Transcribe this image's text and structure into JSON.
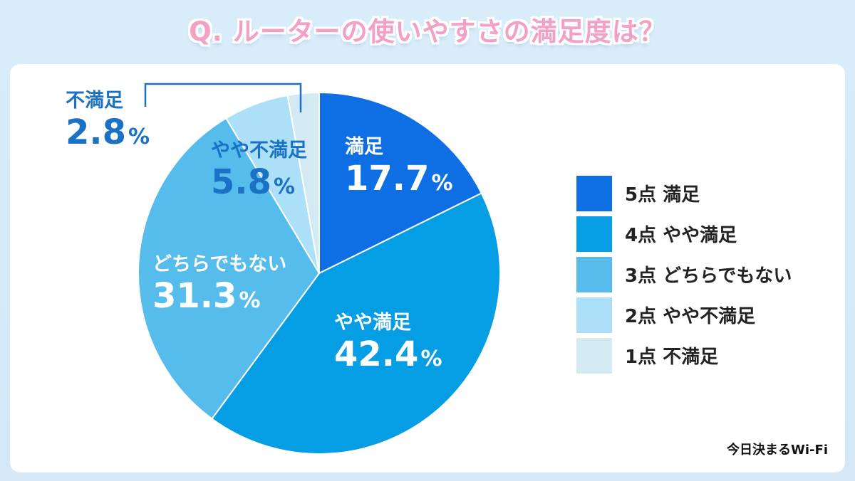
{
  "title": "Q. ルーターの使いやすさの満足度は？",
  "credit": "今日決まるWi-Fi",
  "chart_data": {
    "type": "pie",
    "title": "Q. ルーターの使いやすさの満足度は？",
    "unit": "%",
    "slices": [
      {
        "legend": "5点 満足",
        "label": "満足",
        "value": 17.7,
        "value_text": "17.7",
        "color": "#0d6fe3",
        "label_color": "#ffffff"
      },
      {
        "legend": "4点 やや満足",
        "label": "やや満足",
        "value": 42.4,
        "value_text": "42.4",
        "color": "#059de3",
        "label_color": "#ffffff"
      },
      {
        "legend": "3点 どちらでもない",
        "label": "どちらでもない",
        "value": 31.3,
        "value_text": "31.3",
        "color": "#55bcec",
        "label_color": "#ffffff"
      },
      {
        "legend": "2点 やや不満足",
        "label": "やや不満足",
        "value": 5.8,
        "value_text": "5.8",
        "color": "#ace0f8",
        "label_color": "#1b72c4"
      },
      {
        "legend": "1点 不満足",
        "label": "不満足",
        "value": 2.8,
        "value_text": "2.8",
        "color": "#d4eaf3",
        "label_color": "#1b72c4"
      }
    ]
  }
}
